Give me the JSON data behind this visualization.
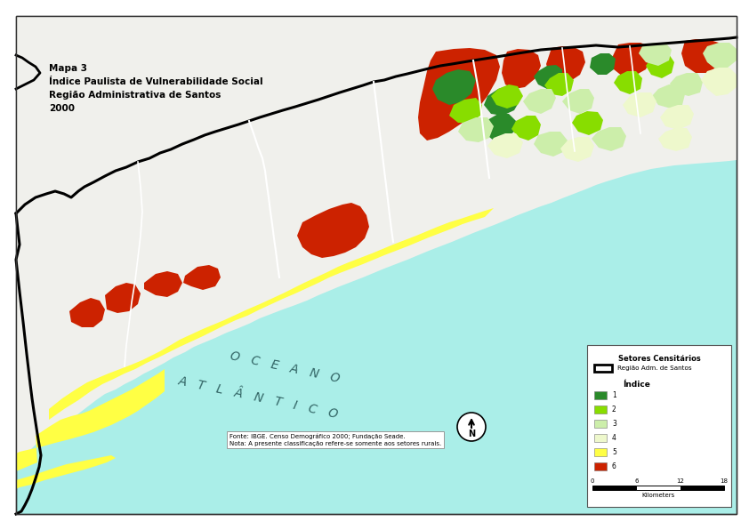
{
  "title_lines": [
    "Mapa 3",
    "Índice Paulista de Vulnerabilidade Social",
    "Região Administrativa de Santos",
    "2000"
  ],
  "ocean_color": "#aaeee8",
  "land_color": "#f0f0ec",
  "legend_title": "Setores Censitários",
  "legend_subtitle": "Índice",
  "legend_region_label": "Região Adm. de Santos",
  "legend_colors": [
    "#2a8a2a",
    "#88dd00",
    "#cceeaa",
    "#eef8cc",
    "#ffff44",
    "#cc2200"
  ],
  "legend_labels": [
    "1",
    "2",
    "3",
    "4",
    "5",
    "6"
  ],
  "scale_ticks": [
    "0",
    "6",
    "12",
    "18"
  ],
  "scale_label": "Kilometers",
  "source_text": "Fonte: IBGE. Censo Demográfico 2000; Fundação Seade.",
  "note_text": "Nota: A presente classificação refere-se somente aos setores rurais.",
  "ocean_label_1": "O   C   E   A   N   O",
  "ocean_label_2": "A   T   L   Â   N   T   I   C   O",
  "background_outer": "#ffffff",
  "map_border_color": "#000000",
  "fig_width": 8.42,
  "fig_height": 5.96
}
